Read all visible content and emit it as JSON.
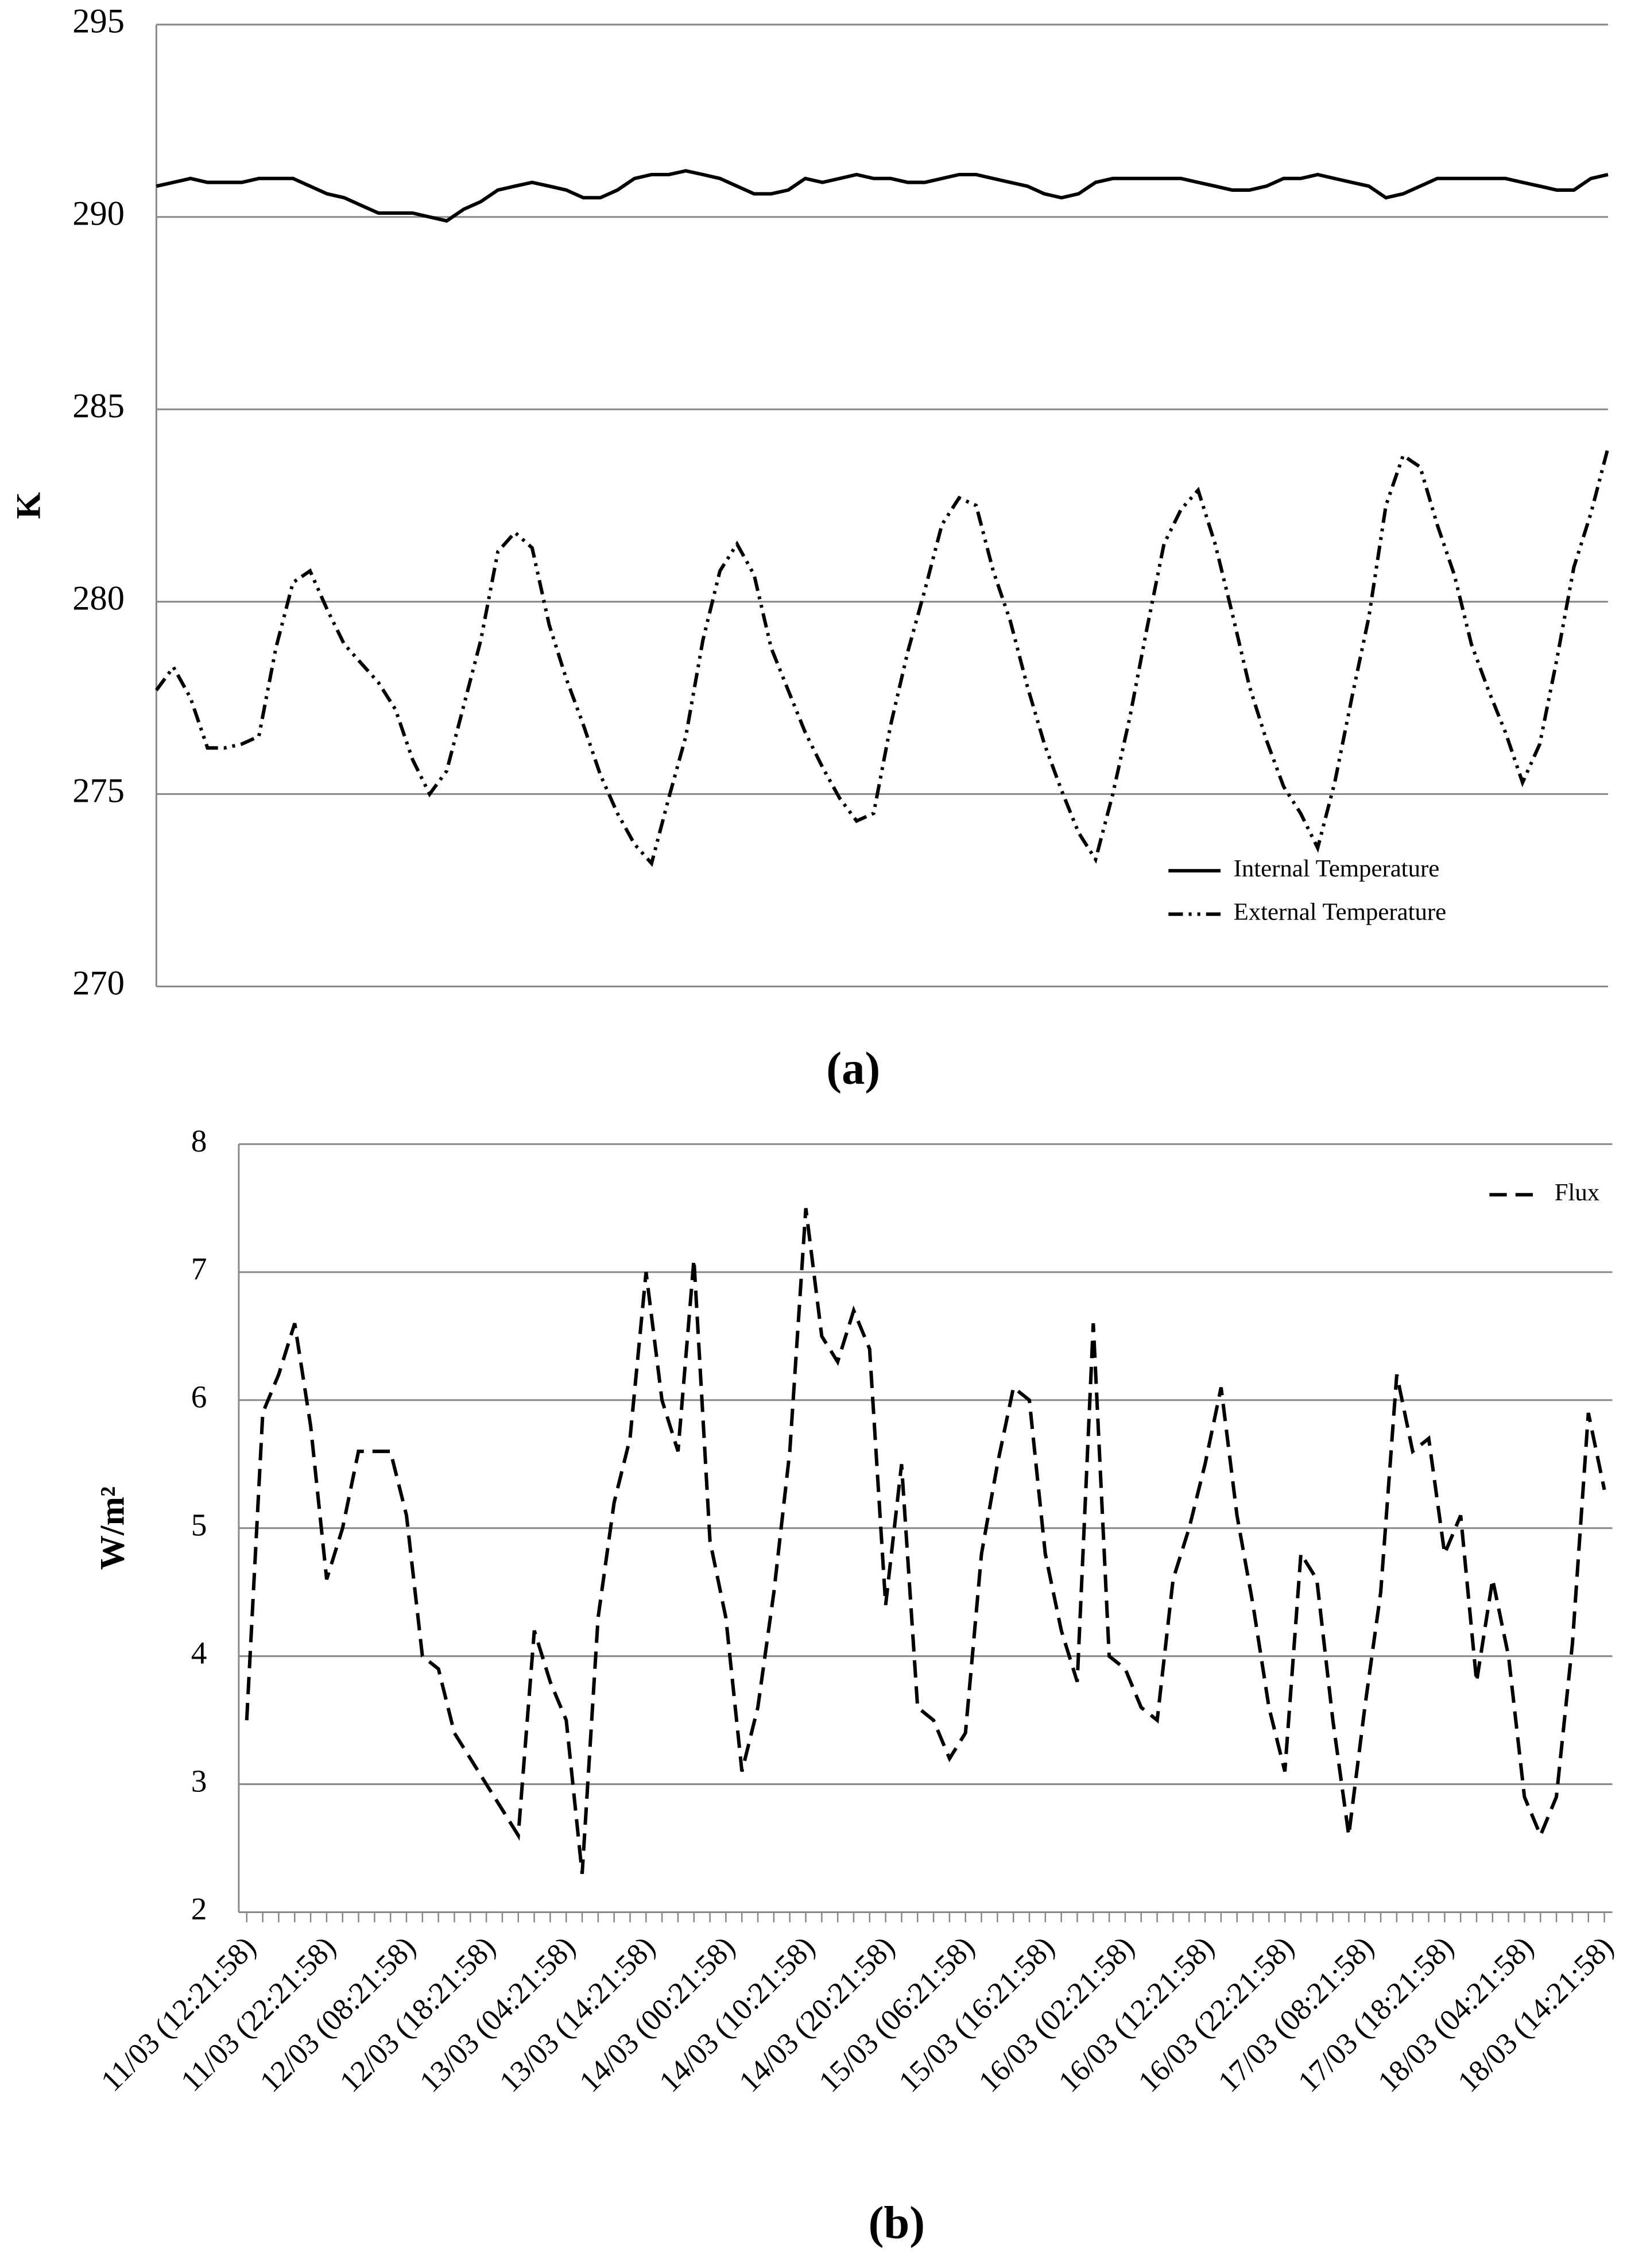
{
  "chart_data": [
    {
      "type": "line",
      "caption": "(a)",
      "y_label": "K",
      "ylim": [
        270,
        295
      ],
      "yticks": [
        270,
        275,
        280,
        285,
        290,
        295
      ],
      "grid": true,
      "legend": "bottom-right",
      "series": [
        {
          "name": "Internal Temperature",
          "color": "#000000",
          "line_style": "solid",
          "values": [
            290.8,
            290.9,
            291.0,
            290.9,
            290.9,
            290.9,
            291.0,
            291.0,
            291.0,
            290.8,
            290.6,
            290.5,
            290.3,
            290.1,
            290.1,
            290.1,
            290.0,
            289.9,
            290.2,
            290.4,
            290.7,
            290.8,
            290.9,
            290.8,
            290.7,
            290.5,
            290.5,
            290.7,
            291.0,
            291.1,
            291.1,
            291.2,
            291.1,
            291.0,
            290.8,
            290.6,
            290.6,
            290.7,
            291.0,
            290.9,
            291.0,
            291.1,
            291.0,
            291.0,
            290.9,
            290.9,
            291.0,
            291.1,
            291.1,
            291.0,
            290.9,
            290.8,
            290.6,
            290.5,
            290.6,
            290.9,
            291.0,
            291.0,
            291.0,
            291.0,
            291.0,
            290.9,
            290.8,
            290.7,
            290.7,
            290.8,
            291.0,
            291.0,
            291.1,
            291.0,
            290.9,
            290.8,
            290.5,
            290.6,
            290.8,
            291.0,
            291.0,
            291.0,
            291.0,
            291.0,
            290.9,
            290.8,
            290.7,
            290.7,
            291.0,
            291.1
          ]
        },
        {
          "name": "External Temperature",
          "color": "#000000",
          "line_style": "dash-dot-dot",
          "values": [
            277.7,
            278.3,
            277.5,
            276.2,
            276.2,
            276.3,
            276.5,
            278.8,
            280.5,
            280.8,
            279.8,
            278.9,
            278.4,
            277.9,
            277.2,
            275.9,
            275.0,
            275.6,
            277.3,
            279.0,
            281.3,
            281.8,
            281.4,
            279.4,
            278.0,
            276.8,
            275.5,
            274.5,
            273.7,
            273.2,
            274.9,
            276.5,
            279.0,
            280.8,
            281.5,
            280.7,
            278.8,
            277.7,
            276.6,
            275.7,
            274.9,
            274.3,
            274.5,
            276.8,
            278.7,
            280.3,
            282.0,
            282.7,
            282.5,
            280.8,
            279.5,
            277.8,
            276.3,
            275.1,
            274.0,
            273.3,
            275.0,
            277.0,
            279.3,
            281.5,
            282.4,
            282.9,
            281.5,
            279.7,
            277.8,
            276.4,
            275.2,
            274.5,
            273.6,
            275.3,
            277.5,
            279.6,
            282.5,
            283.8,
            283.5,
            282.0,
            280.7,
            278.9,
            277.7,
            276.6,
            275.3,
            276.3,
            278.5,
            280.9,
            282.3,
            284.0
          ]
        }
      ]
    },
    {
      "type": "line",
      "caption": "(b)",
      "y_label": "W/m²",
      "ylim": [
        2,
        8
      ],
      "yticks": [
        2,
        3,
        4,
        5,
        6,
        7,
        8
      ],
      "grid": true,
      "legend": "top-right",
      "categories": [
        "11/03  (12:21:58)",
        null,
        null,
        null,
        null,
        "11/03  (22:21:58)",
        null,
        null,
        null,
        null,
        "12/03  (08:21:58)",
        null,
        null,
        null,
        null,
        "12/03  (18:21:58)",
        null,
        null,
        null,
        null,
        "13/03  (04:21:58)",
        null,
        null,
        null,
        null,
        "13/03  (14:21:58)",
        null,
        null,
        null,
        null,
        "14/03  (00:21:58)",
        null,
        null,
        null,
        null,
        "14/03  (10:21:58)",
        null,
        null,
        null,
        null,
        "14/03  (20:21:58)",
        null,
        null,
        null,
        null,
        "15/03  (06:21:58)",
        null,
        null,
        null,
        null,
        "15/03  (16:21:58)",
        null,
        null,
        null,
        null,
        "16/03  (02:21:58)",
        null,
        null,
        null,
        null,
        "16/03  (12:21:58)",
        null,
        null,
        null,
        null,
        "16/03  (22:21:58)",
        null,
        null,
        null,
        null,
        "17/03  (08:21:58)",
        null,
        null,
        null,
        null,
        "17/03  (18:21:58)",
        null,
        null,
        null,
        null,
        "18/03  (04:21:58)",
        null,
        null,
        null,
        null,
        "18/03  (14:21:58)"
      ],
      "series": [
        {
          "name": "Flux",
          "color": "#000000",
          "line_style": "dash",
          "values": [
            3.5,
            5.9,
            6.2,
            6.6,
            5.8,
            4.6,
            5.0,
            5.6,
            5.6,
            5.6,
            5.1,
            4.0,
            3.9,
            3.4,
            3.2,
            3.0,
            2.8,
            2.6,
            4.2,
            3.8,
            3.5,
            2.3,
            4.3,
            5.2,
            5.7,
            7.0,
            6.0,
            5.6,
            7.1,
            4.9,
            4.3,
            3.1,
            3.6,
            4.5,
            5.6,
            7.5,
            6.5,
            6.3,
            6.7,
            6.4,
            4.4,
            5.5,
            3.6,
            3.5,
            3.2,
            3.4,
            4.8,
            5.5,
            6.1,
            6.0,
            4.8,
            4.2,
            3.8,
            6.6,
            4.0,
            3.9,
            3.6,
            3.5,
            4.6,
            5.0,
            5.5,
            6.1,
            5.1,
            4.4,
            3.6,
            3.1,
            4.8,
            4.6,
            3.5,
            2.6,
            3.6,
            4.5,
            6.2,
            5.6,
            5.7,
            4.8,
            5.1,
            3.8,
            4.6,
            4.0,
            2.9,
            2.6,
            2.9,
            4.1,
            5.9,
            5.3
          ]
        }
      ]
    }
  ]
}
